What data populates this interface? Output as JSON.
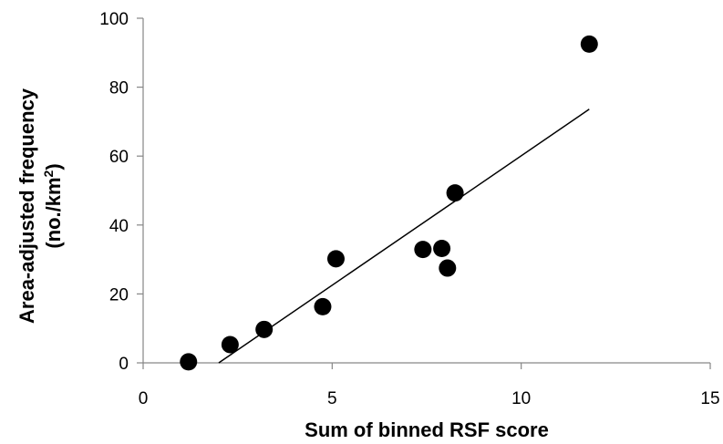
{
  "chart_data": {
    "type": "scatter",
    "xlabel": "Sum of binned RSF score",
    "ylabel_line1": "Area-adjusted frequency",
    "ylabel_line2_prefix": "(no./km",
    "ylabel_line2_sup": "2",
    "ylabel_line2_suffix": ")",
    "xlim": [
      0,
      15
    ],
    "ylim": [
      0,
      100
    ],
    "x_ticks": [
      0,
      5,
      10,
      15
    ],
    "x_tick_labels": [
      "0",
      "5",
      "10",
      "15"
    ],
    "y_ticks": [
      0,
      20,
      40,
      60,
      80,
      100
    ],
    "y_tick_labels": [
      "0",
      "20",
      "40",
      "60",
      "80",
      "100"
    ],
    "grid": false,
    "legend": "none",
    "points": [
      {
        "x": 1.2,
        "y": 0.3
      },
      {
        "x": 2.3,
        "y": 5.3
      },
      {
        "x": 3.2,
        "y": 9.7
      },
      {
        "x": 4.75,
        "y": 16.3
      },
      {
        "x": 5.1,
        "y": 30.2
      },
      {
        "x": 7.4,
        "y": 32.9
      },
      {
        "x": 7.9,
        "y": 33.2
      },
      {
        "x": 8.05,
        "y": 27.5
      },
      {
        "x": 8.25,
        "y": 49.3
      },
      {
        "x": 11.8,
        "y": 92.5
      }
    ],
    "trendline": {
      "type": "linear",
      "x_start": 2.0,
      "x_end": 11.8,
      "y_start": 0.0,
      "y_end": 73.6
    },
    "colors": {
      "marker": "#000000",
      "trendline": "#000000",
      "axis": "#868686"
    }
  }
}
